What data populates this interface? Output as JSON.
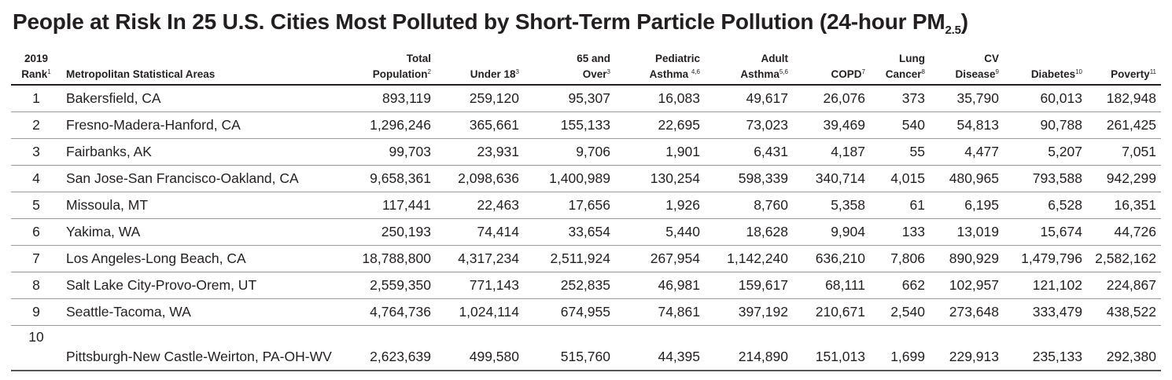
{
  "title": {
    "main": "People at Risk In 25 U.S. Cities Most Polluted by Short-Term Particle Pollution (24-hour PM",
    "sub": "2.5",
    "close": ")"
  },
  "columns": [
    {
      "line1": "2019",
      "line2": "Rank",
      "sup": "1"
    },
    {
      "line1": "",
      "line2": "Metropolitan Statistical Areas",
      "sup": ""
    },
    {
      "line1": "Total",
      "line2": "Population",
      "sup": "2"
    },
    {
      "line1": "",
      "line2": "Under 18",
      "sup": "3"
    },
    {
      "line1": "65 and",
      "line2": "Over",
      "sup": "3"
    },
    {
      "line1": "Pediatric",
      "line2": "Asthma ",
      "sup": "4,6"
    },
    {
      "line1": "Adult",
      "line2": "Asthma",
      "sup": "5,6"
    },
    {
      "line1": "",
      "line2": "COPD",
      "sup": "7"
    },
    {
      "line1": "Lung",
      "line2": "Cancer",
      "sup": "8"
    },
    {
      "line1": "CV",
      "line2": "Disease",
      "sup": "9"
    },
    {
      "line1": "",
      "line2": "Diabetes",
      "sup": "10"
    },
    {
      "line1": "",
      "line2": "Poverty",
      "sup": "11"
    }
  ],
  "rows": [
    [
      "1",
      "Bakersfield, CA",
      "893,119",
      "259,120",
      "95,307",
      "16,083",
      "49,617",
      "26,076",
      "373",
      "35,790",
      "60,013",
      "182,948"
    ],
    [
      "2",
      "Fresno-Madera-Hanford, CA",
      "1,296,246",
      "365,661",
      "155,133",
      "22,695",
      "73,023",
      "39,469",
      "540",
      "54,813",
      "90,788",
      "261,425"
    ],
    [
      "3",
      "Fairbanks, AK",
      "99,703",
      "23,931",
      "9,706",
      "1,901",
      "6,431",
      "4,187",
      "55",
      "4,477",
      "5,207",
      "7,051"
    ],
    [
      "4",
      "San Jose-San Francisco-Oakland, CA",
      "9,658,361",
      "2,098,636",
      "1,400,989",
      "130,254",
      "598,339",
      "340,714",
      "4,015",
      "480,965",
      "793,588",
      "942,299"
    ],
    [
      "5",
      "Missoula, MT",
      "117,441",
      "22,463",
      "17,656",
      "1,926",
      "8,760",
      "5,358",
      "61",
      "6,195",
      "6,528",
      "16,351"
    ],
    [
      "6",
      "Yakima, WA",
      "250,193",
      "74,414",
      "33,654",
      "5,440",
      "18,628",
      "9,904",
      "133",
      "13,019",
      "15,674",
      "44,726"
    ],
    [
      "7",
      "Los Angeles-Long Beach, CA",
      "18,788,800",
      "4,317,234",
      "2,511,924",
      "267,954",
      "1,142,240",
      "636,210",
      "7,806",
      "890,929",
      "1,479,796",
      "2,582,162"
    ],
    [
      "8",
      "Salt Lake City-Provo-Orem, UT",
      "2,559,350",
      "771,143",
      "252,835",
      "46,981",
      "159,617",
      "68,111",
      "662",
      "102,957",
      "121,102",
      "224,867"
    ],
    [
      "9",
      "Seattle-Tacoma, WA",
      "4,764,736",
      "1,024,114",
      "674,955",
      "74,861",
      "397,192",
      "210,671",
      "2,540",
      "273,648",
      "333,479",
      "438,522"
    ],
    [
      "10",
      "Pittsburgh-New Castle-Weirton, PA-OH-WV",
      "2,623,639",
      "499,580",
      "515,760",
      "44,395",
      "214,890",
      "151,013",
      "1,699",
      "229,913",
      "235,133",
      "292,380"
    ]
  ]
}
